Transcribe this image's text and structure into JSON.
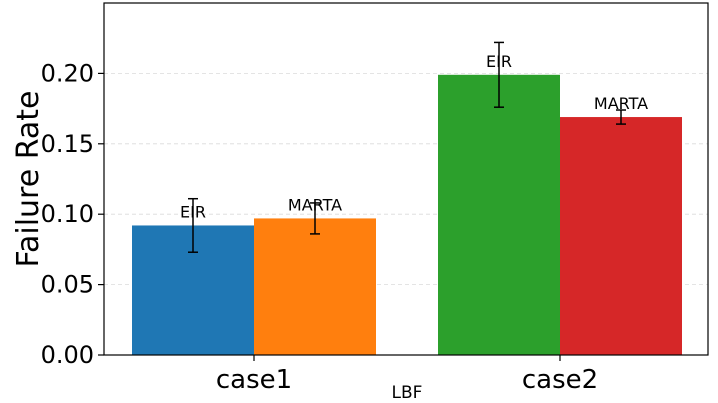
{
  "chart_data": {
    "type": "bar",
    "title": "",
    "xlabel": "LBF",
    "ylabel": "Failure Rate",
    "ylim": [
      0,
      0.25
    ],
    "yticks": [
      "0.00",
      "0.05",
      "0.10",
      "0.15",
      "0.20"
    ],
    "grid": true,
    "categories": [
      "case1",
      "case2"
    ],
    "series": [
      {
        "name": "EIR",
        "values": [
          0.092,
          0.199
        ],
        "errors": [
          0.019,
          0.023
        ],
        "colors": [
          "#1f77b4",
          "#2ca02c"
        ],
        "labels": [
          "EIR",
          "EIR"
        ]
      },
      {
        "name": "MARTA",
        "values": [
          0.097,
          0.169
        ],
        "errors": [
          0.011,
          0.005
        ],
        "colors": [
          "#ff7f0e",
          "#d62728"
        ],
        "labels": [
          "MARTA",
          "MARTA"
        ]
      }
    ]
  }
}
